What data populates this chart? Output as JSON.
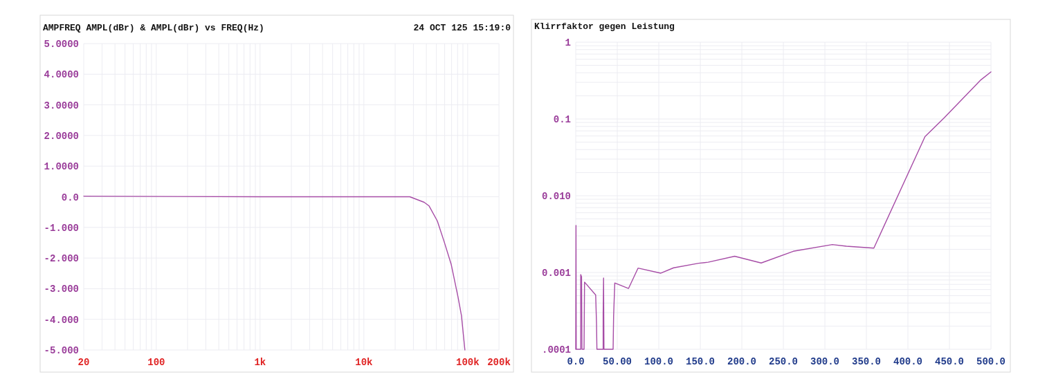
{
  "chart_data": [
    {
      "type": "line",
      "title": "AMPFREQ AMPL(dBr) & AMPL(dBr) vs FREQ(Hz)",
      "annotations": [
        "24 OCT 125 15:19:0"
      ],
      "log": "x",
      "grid": true,
      "xlim": [
        20,
        200000
      ],
      "xticks": [
        {
          "value": 20,
          "label": "20"
        },
        {
          "value": 30,
          "label": null
        },
        {
          "value": 40,
          "label": null
        },
        {
          "value": 50,
          "label": null
        },
        {
          "value": 60,
          "label": null
        },
        {
          "value": 70,
          "label": null
        },
        {
          "value": 80,
          "label": null
        },
        {
          "value": 90,
          "label": null
        },
        {
          "value": 100,
          "label": "100"
        },
        {
          "value": 200,
          "label": null
        },
        {
          "value": 300,
          "label": null
        },
        {
          "value": 400,
          "label": null
        },
        {
          "value": 500,
          "label": null
        },
        {
          "value": 600,
          "label": null
        },
        {
          "value": 700,
          "label": null
        },
        {
          "value": 800,
          "label": null
        },
        {
          "value": 900,
          "label": null
        },
        {
          "value": 1000,
          "label": "1k"
        },
        {
          "value": 2000,
          "label": null
        },
        {
          "value": 3000,
          "label": null
        },
        {
          "value": 4000,
          "label": null
        },
        {
          "value": 5000,
          "label": null
        },
        {
          "value": 6000,
          "label": null
        },
        {
          "value": 7000,
          "label": null
        },
        {
          "value": 8000,
          "label": null
        },
        {
          "value": 9000,
          "label": null
        },
        {
          "value": 10000,
          "label": "10k"
        },
        {
          "value": 20000,
          "label": null
        },
        {
          "value": 30000,
          "label": null
        },
        {
          "value": 40000,
          "label": null
        },
        {
          "value": 50000,
          "label": null
        },
        {
          "value": 60000,
          "label": null
        },
        {
          "value": 70000,
          "label": null
        },
        {
          "value": 80000,
          "label": null
        },
        {
          "value": 90000,
          "label": null
        },
        {
          "value": 100000,
          "label": "100k"
        },
        {
          "value": 200000,
          "label": "200k"
        }
      ],
      "ylim": [
        -5,
        5
      ],
      "yticks": [
        {
          "value": 5,
          "label": "5.0000"
        },
        {
          "value": 4,
          "label": "4.0000"
        },
        {
          "value": 3,
          "label": "3.0000"
        },
        {
          "value": 2,
          "label": "2.0000"
        },
        {
          "value": 1,
          "label": "1.0000"
        },
        {
          "value": 0,
          "label": "0.0"
        },
        {
          "value": -1,
          "label": "-1.000"
        },
        {
          "value": -2,
          "label": "-2.000"
        },
        {
          "value": -3,
          "label": "-3.000"
        },
        {
          "value": -4,
          "label": "-4.000"
        },
        {
          "value": -5,
          "label": "-5.000"
        }
      ],
      "series": [
        {
          "color": "#a64ca6",
          "x": [
            20,
            1000,
            10000,
            20000,
            27700,
            38100,
            42500,
            51000,
            59400,
            69300,
            80700,
            87100,
            94000
          ],
          "values": [
            0.02,
            0,
            0,
            0,
            0,
            -0.18,
            -0.3,
            -0.79,
            -1.47,
            -2.2,
            -3.27,
            -3.88,
            -5
          ]
        }
      ]
    },
    {
      "type": "line",
      "title": "Klirrfaktor  gegen  Leistung",
      "log": "y",
      "grid": true,
      "xlim": [
        0,
        500
      ],
      "xticks": [
        {
          "value": 0,
          "label": "0.0"
        },
        {
          "value": 50,
          "label": "50.00"
        },
        {
          "value": 100,
          "label": "100.0"
        },
        {
          "value": 150,
          "label": "150.0"
        },
        {
          "value": 200,
          "label": "200.0"
        },
        {
          "value": 250,
          "label": "250.0"
        },
        {
          "value": 300,
          "label": "300.0"
        },
        {
          "value": 350,
          "label": "350.0"
        },
        {
          "value": 400,
          "label": "400.0"
        },
        {
          "value": 450,
          "label": "450.0"
        },
        {
          "value": 500,
          "label": "500.0"
        }
      ],
      "ylim": [
        0.0001,
        1
      ],
      "yticks": [
        {
          "value": 0.0001,
          "label": ".0001"
        },
        {
          "value": 0.0002,
          "label": null
        },
        {
          "value": 0.0003,
          "label": null
        },
        {
          "value": 0.0004,
          "label": null
        },
        {
          "value": 0.0005,
          "label": null
        },
        {
          "value": 0.0006,
          "label": null
        },
        {
          "value": 0.0007,
          "label": null
        },
        {
          "value": 0.0008,
          "label": null
        },
        {
          "value": 0.0009,
          "label": null
        },
        {
          "value": 0.001,
          "label": "0.001"
        },
        {
          "value": 0.002,
          "label": null
        },
        {
          "value": 0.003,
          "label": null
        },
        {
          "value": 0.004,
          "label": null
        },
        {
          "value": 0.005,
          "label": null
        },
        {
          "value": 0.006,
          "label": null
        },
        {
          "value": 0.007,
          "label": null
        },
        {
          "value": 0.008,
          "label": null
        },
        {
          "value": 0.009,
          "label": null
        },
        {
          "value": 0.01,
          "label": "0.010"
        },
        {
          "value": 0.02,
          "label": null
        },
        {
          "value": 0.03,
          "label": null
        },
        {
          "value": 0.04,
          "label": null
        },
        {
          "value": 0.05,
          "label": null
        },
        {
          "value": 0.06,
          "label": null
        },
        {
          "value": 0.07,
          "label": null
        },
        {
          "value": 0.08,
          "label": null
        },
        {
          "value": 0.09,
          "label": null
        },
        {
          "value": 0.1,
          "label": "0.1"
        },
        {
          "value": 0.2,
          "label": null
        },
        {
          "value": 0.3,
          "label": null
        },
        {
          "value": 0.4,
          "label": null
        },
        {
          "value": 0.5,
          "label": null
        },
        {
          "value": 0.6,
          "label": null
        },
        {
          "value": 0.7,
          "label": null
        },
        {
          "value": 0.8,
          "label": null
        },
        {
          "value": 0.9,
          "label": null
        },
        {
          "value": 1,
          "label": "1"
        }
      ],
      "series": [
        {
          "color": "#a64ca6",
          "x": [
            0,
            0.3,
            0.6,
            6,
            6,
            7,
            7.5,
            10,
            10.6,
            24,
            25,
            25.5,
            33,
            33,
            33.5,
            34,
            45,
            45.6,
            47,
            63.6,
            75,
            102.5,
            117.8,
            148,
            159.4,
            191.4,
            223.3,
            262,
            309,
            326,
            359,
            420.6,
            444,
            488,
            500
          ],
          "values": [
            0.0001,
            0.0041,
            0.0001,
            0.0001,
            0.00094,
            0.00088,
            0.0001,
            0.0001,
            0.00075,
            0.00051,
            0.00022,
            0.0001,
            0.0001,
            0.00028,
            0.00085,
            0.0001,
            0.0001,
            0.00027,
            0.00073,
            0.00062,
            0.00114,
            0.00098,
            0.00115,
            0.00132,
            0.00136,
            0.00163,
            0.00133,
            0.00189,
            0.00231,
            0.0022,
            0.00208,
            0.0589,
            0.104,
            0.324,
            0.41
          ]
        }
      ]
    }
  ]
}
